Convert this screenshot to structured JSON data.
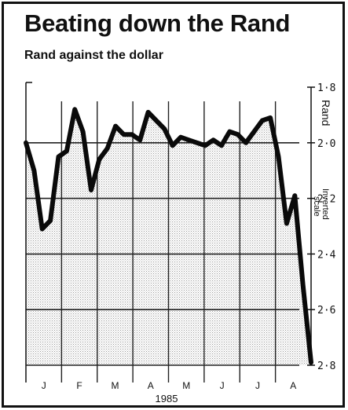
{
  "chart_data": {
    "type": "line",
    "title": "Beating down the Rand",
    "subtitle": "Rand against the dollar",
    "ylabel": "Rand",
    "yaxis_note": [
      "Inverted",
      "scale"
    ],
    "y_inverted": true,
    "ylim": [
      1.8,
      2.8
    ],
    "yticks": [
      1.8,
      2.0,
      2.2,
      2.4,
      2.6,
      2.8
    ],
    "ytick_labels": [
      "1·8",
      "2·0",
      "2·2",
      "2·4",
      "2·6",
      "2·8"
    ],
    "xlabel": "1985",
    "month_labels": [
      "J",
      "F",
      "M",
      "A",
      "M",
      "J",
      "J",
      "A"
    ],
    "grid": true,
    "series": [
      {
        "values": [
          2.0,
          2.1,
          2.31,
          2.28,
          2.05,
          2.03,
          1.88,
          1.96,
          2.17,
          2.06,
          2.02,
          1.94,
          1.97,
          1.97,
          1.99,
          1.89,
          1.92,
          1.95,
          2.01,
          1.98,
          1.99,
          2.0,
          2.01,
          1.99,
          2.01,
          1.96,
          1.97,
          2.0,
          1.96,
          1.92,
          1.91,
          2.05,
          2.29,
          2.19,
          2.51,
          2.79
        ]
      }
    ]
  }
}
